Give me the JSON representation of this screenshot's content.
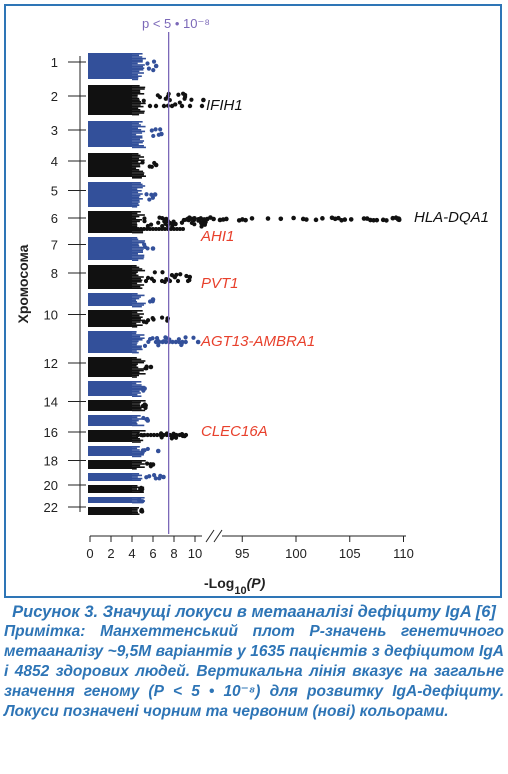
{
  "chart_data": {
    "type": "scatter",
    "subtype": "manhattan-horizontal",
    "ylabel": "Хромосома",
    "xlabel_prefix": "-Log",
    "xlabel_sub": "10",
    "xlabel_suffix": "(P)",
    "threshold_label": "p < 5 • 10⁻⁸",
    "threshold_value": 7.3,
    "x_ticks_left": [
      "0",
      "2",
      "4",
      "6",
      "8",
      "10"
    ],
    "x_ticks_right": [
      "95",
      "100",
      "105",
      "110"
    ],
    "x_axis_break": [
      11,
      92
    ],
    "chromosome_labels": [
      "1",
      "2",
      "3",
      "4",
      "5",
      "6",
      "7",
      "8",
      "10",
      "12",
      "14",
      "16",
      "18",
      "20",
      "22"
    ],
    "chromosomes": [
      {
        "chr": 1,
        "color": "blue",
        "max_log10p": 6.3
      },
      {
        "chr": 2,
        "color": "black",
        "max_log10p": 10.8
      },
      {
        "chr": 3,
        "color": "blue",
        "max_log10p": 6.8
      },
      {
        "chr": 4,
        "color": "black",
        "max_log10p": 6.3
      },
      {
        "chr": 5,
        "color": "blue",
        "max_log10p": 6.2
      },
      {
        "chr": 6,
        "color": "black",
        "max_log10p": 110
      },
      {
        "chr": 7,
        "color": "blue",
        "max_log10p": 6.0
      },
      {
        "chr": 8,
        "color": "black",
        "max_log10p": 9.5
      },
      {
        "chr": 9,
        "color": "blue",
        "max_log10p": 6.0
      },
      {
        "chr": 10,
        "color": "black",
        "max_log10p": 7.4
      },
      {
        "chr": 11,
        "color": "blue",
        "max_log10p": 10.3
      },
      {
        "chr": 12,
        "color": "black",
        "max_log10p": 5.8
      },
      {
        "chr": 13,
        "color": "blue",
        "max_log10p": 5.2
      },
      {
        "chr": 14,
        "color": "black",
        "max_log10p": 5.3
      },
      {
        "chr": 15,
        "color": "blue",
        "max_log10p": 5.5
      },
      {
        "chr": 16,
        "color": "black",
        "max_log10p": 9.0
      },
      {
        "chr": 17,
        "color": "blue",
        "max_log10p": 6.5
      },
      {
        "chr": 18,
        "color": "black",
        "max_log10p": 6.0
      },
      {
        "chr": 19,
        "color": "blue",
        "max_log10p": 7.0
      },
      {
        "chr": 20,
        "color": "black",
        "max_log10p": 4.8
      },
      {
        "chr": 21,
        "color": "blue",
        "max_log10p": 4.7
      },
      {
        "chr": 22,
        "color": "black",
        "max_log10p": 4.9
      }
    ],
    "annotations": [
      {
        "text": "IFIH1",
        "chr": 2,
        "color": "black"
      },
      {
        "text": "HLA-DQA1",
        "chr": 6,
        "color": "black"
      },
      {
        "text": "AHI1",
        "chr": 6,
        "color": "red"
      },
      {
        "text": "PVT1",
        "chr": 8,
        "color": "red"
      },
      {
        "text": "AGT13-AMBRA1",
        "chr": 11,
        "color": "red"
      },
      {
        "text": "CLEC16A",
        "chr": 16,
        "color": "red"
      }
    ],
    "colors": {
      "blue": "#33509a",
      "black": "#111111",
      "red": "#e8402c",
      "threshold": "#7b68b8"
    }
  },
  "caption": {
    "title": "Рисунок 3. Значущі локуси в метааналізі дефіциту IgA [6]",
    "note": "Примітка: Манхеттенський плот Р-значень генетичного метааналізу ~9,5М варіантів у 1635 пацієнтів з дефіцитом IgA і 4852 здорових людей. Вертикальна лінія вказує на загальне значення геному (Р < 5 • 10⁻⁸) для розвитку IgA-дефіциту. Локуси позначені чорним та червоним (нові) кольорами."
  }
}
